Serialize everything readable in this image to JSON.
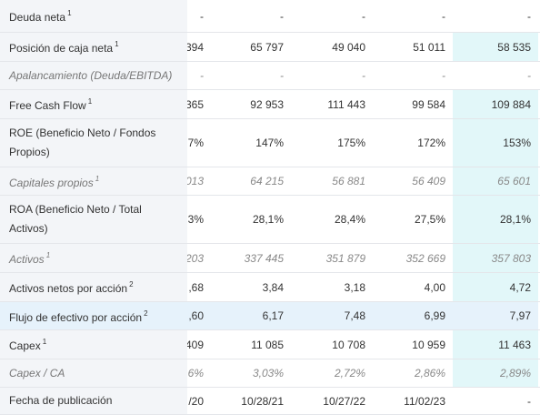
{
  "rows": [
    {
      "label": "Deuda neta",
      "sup": "1",
      "italic": false,
      "highlight": false,
      "values": [
        "-",
        "-",
        "-",
        "-",
        "-"
      ],
      "last_cyan": false
    },
    {
      "label": "Posición de caja neta",
      "sup": "1",
      "italic": false,
      "highlight": false,
      "values": [
        "394",
        "65 797",
        "49 040",
        "51 011",
        "58 535"
      ],
      "last_cyan": true
    },
    {
      "label": "Apalancamiento (Deuda/EBITDA)",
      "sup": "",
      "italic": true,
      "highlight": false,
      "values": [
        "-",
        "-",
        "-",
        "-",
        "-"
      ],
      "last_cyan": false
    },
    {
      "label": "Free Cash Flow",
      "sup": "1",
      "italic": false,
      "highlight": false,
      "values": [
        "365",
        "92 953",
        "111 443",
        "99 584",
        "109 884"
      ],
      "last_cyan": true
    },
    {
      "label": "ROE (Beneficio Neto / Fondos Propios)",
      "sup": "",
      "italic": false,
      "highlight": false,
      "values": [
        "7%",
        "147%",
        "175%",
        "172%",
        "153%"
      ],
      "last_cyan": true
    },
    {
      "label": "Capitales propios",
      "sup": "1",
      "italic": true,
      "highlight": false,
      "values": [
        "013",
        "64 215",
        "56 881",
        "56 409",
        "65 601"
      ],
      "last_cyan": true
    },
    {
      "label": "ROA (Beneficio Neto / Total Activos)",
      "sup": "",
      "italic": false,
      "highlight": false,
      "values": [
        "3%",
        "28,1%",
        "28,4%",
        "27,5%",
        "28,1%"
      ],
      "last_cyan": true
    },
    {
      "label": "Activos",
      "sup": "1",
      "italic": true,
      "highlight": false,
      "values": [
        "203",
        "337 445",
        "351 879",
        "352 669",
        "357 803"
      ],
      "last_cyan": true
    },
    {
      "label": "Activos netos por acción",
      "sup": "2",
      "italic": false,
      "highlight": false,
      "values": ",68|3,84|3,18|4,00|4,72",
      "last_cyan": true
    },
    {
      "label": "Flujo de efectivo por acción",
      "sup": "2",
      "italic": false,
      "highlight": true,
      "values": ",60|6,17|7,48|6,99|7,97",
      "last_cyan": true
    },
    {
      "label": "Capex",
      "sup": "1",
      "italic": false,
      "highlight": false,
      "values": [
        "409",
        "11 085",
        "10 708",
        "10 959",
        "11 463"
      ],
      "last_cyan": true
    },
    {
      "label": "Capex / CA",
      "sup": "",
      "italic": true,
      "highlight": false,
      "values": [
        "6%",
        "3,03%",
        "2,72%",
        "2,86%",
        "2,89%"
      ],
      "last_cyan": true
    },
    {
      "label": "Fecha de publicación",
      "sup": "",
      "italic": false,
      "highlight": false,
      "values": [
        "/20",
        "10/28/21",
        "10/27/22",
        "11/02/23",
        "-"
      ],
      "last_cyan": false
    }
  ]
}
